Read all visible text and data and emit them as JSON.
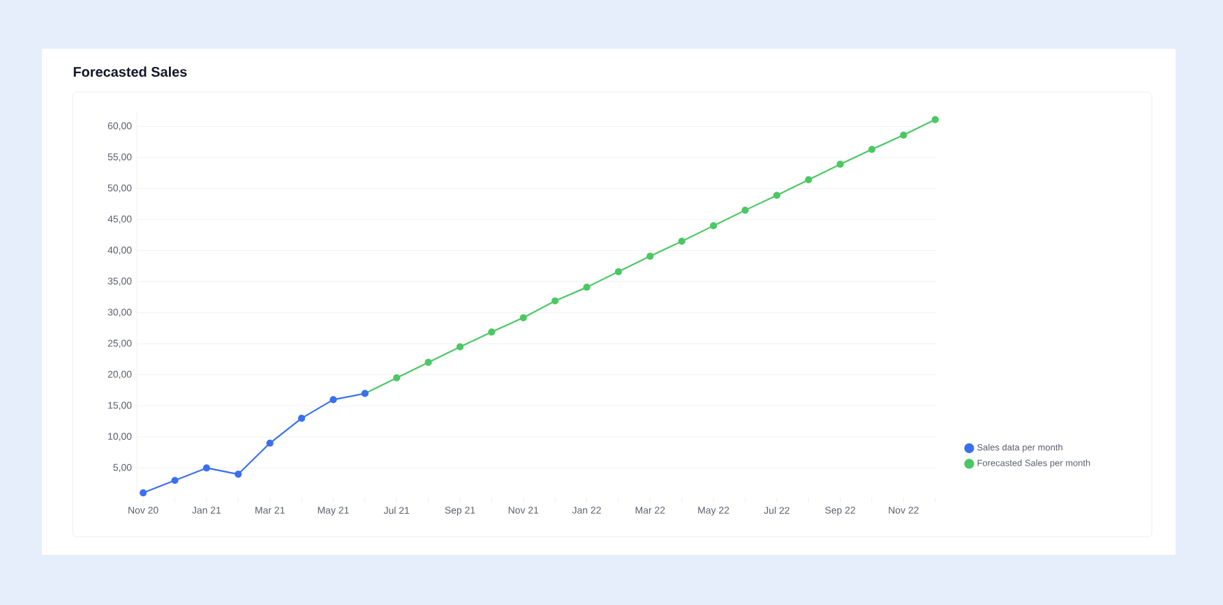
{
  "chart_data": {
    "type": "line",
    "title": "Forecasted Sales",
    "categories": [
      "Nov 20",
      null,
      "Jan 21",
      null,
      "Mar 21",
      null,
      "May 21",
      null,
      "Jul 21",
      null,
      "Sep 21",
      null,
      "Nov 21",
      null,
      "Jan 22",
      null,
      "Mar 22",
      null,
      "May 22",
      null,
      "Jul 22",
      null,
      "Sep 22",
      null,
      "Nov 22",
      null
    ],
    "series": [
      {
        "name": "Sales data per month",
        "color": "#3a6ff0",
        "values": [
          1,
          3,
          5,
          4,
          9,
          13,
          16,
          17,
          null,
          null,
          null,
          null,
          null,
          null,
          null,
          null,
          null,
          null,
          null,
          null,
          null,
          null,
          null,
          null,
          null,
          null
        ]
      },
      {
        "name": "Forecasted Sales per month",
        "color": "#4cc764",
        "values": [
          null,
          null,
          null,
          null,
          null,
          null,
          null,
          17,
          19.5,
          22.0,
          24.5,
          26.9,
          29.2,
          31.9,
          34.1,
          36.6,
          39.1,
          41.5,
          44.0,
          46.5,
          48.9,
          51.4,
          53.9,
          56.3,
          58.6,
          61.1
        ]
      }
    ],
    "yticks": [
      {
        "value": 5,
        "label": "5,00"
      },
      {
        "value": 10,
        "label": "10,00"
      },
      {
        "value": 15,
        "label": "15,00"
      },
      {
        "value": 20,
        "label": "20,00"
      },
      {
        "value": 25,
        "label": "25,00"
      },
      {
        "value": 30,
        "label": "30,00"
      },
      {
        "value": 35,
        "label": "35,00"
      },
      {
        "value": 40,
        "label": "40,00"
      },
      {
        "value": 45,
        "label": "45,00"
      },
      {
        "value": 50,
        "label": "50,00"
      },
      {
        "value": 55,
        "label": "55,00"
      },
      {
        "value": 60,
        "label": "60,00"
      }
    ],
    "ylim": [
      0,
      62.4
    ],
    "grid": "y",
    "legend": "bottom right",
    "marker": "circle",
    "line_style": "solid"
  }
}
